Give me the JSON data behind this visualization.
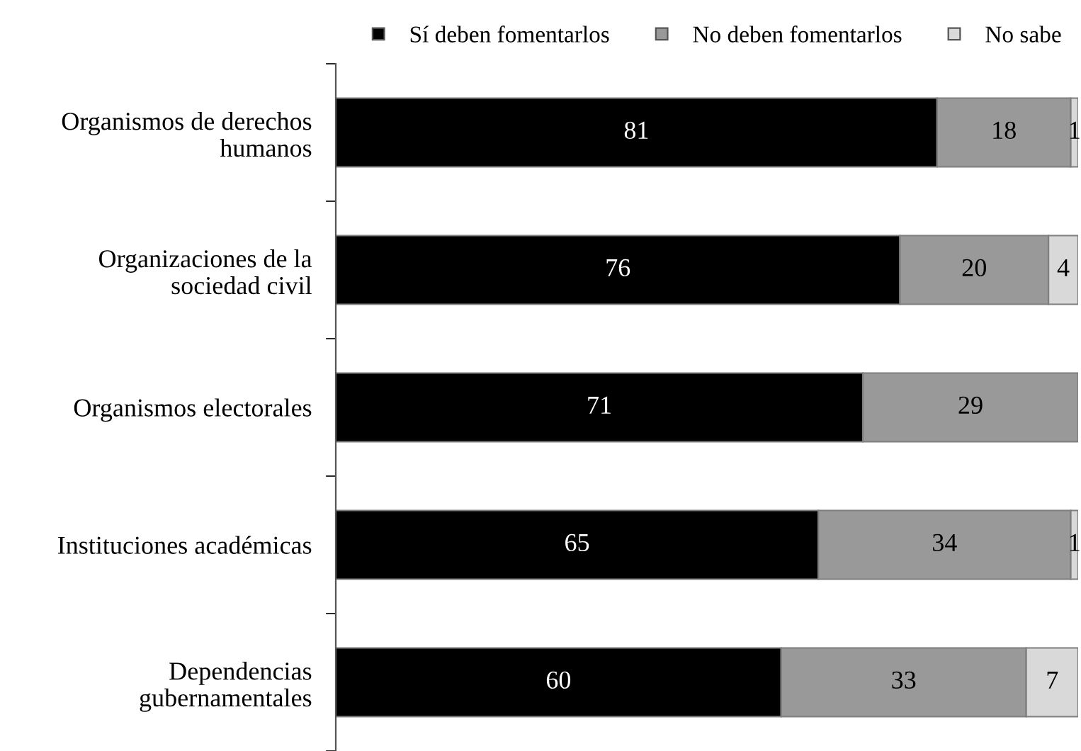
{
  "chart_data": {
    "type": "bar",
    "orientation": "horizontal",
    "stacked": true,
    "data_labels": true,
    "legend": "top right",
    "grid": false,
    "tick_labels": "y",
    "categories": [
      "Organismos de derechos\nhumanos",
      "Organizaciones de la\nsociedad civil",
      "Organismos electorales",
      "Instituciones académicas",
      "Dependencias\ngubernamentales"
    ],
    "series": [
      {
        "name": "Sí deben fomentarlos",
        "color": "#000000",
        "values": [
          81,
          76,
          71,
          65,
          60
        ]
      },
      {
        "name": "No deben fomentarlos",
        "color": "#999999",
        "values": [
          18,
          20,
          29,
          34,
          33
        ]
      },
      {
        "name": "No sabe",
        "color": "#d9d9d9",
        "values": [
          1,
          4,
          null,
          1,
          7
        ]
      }
    ]
  }
}
